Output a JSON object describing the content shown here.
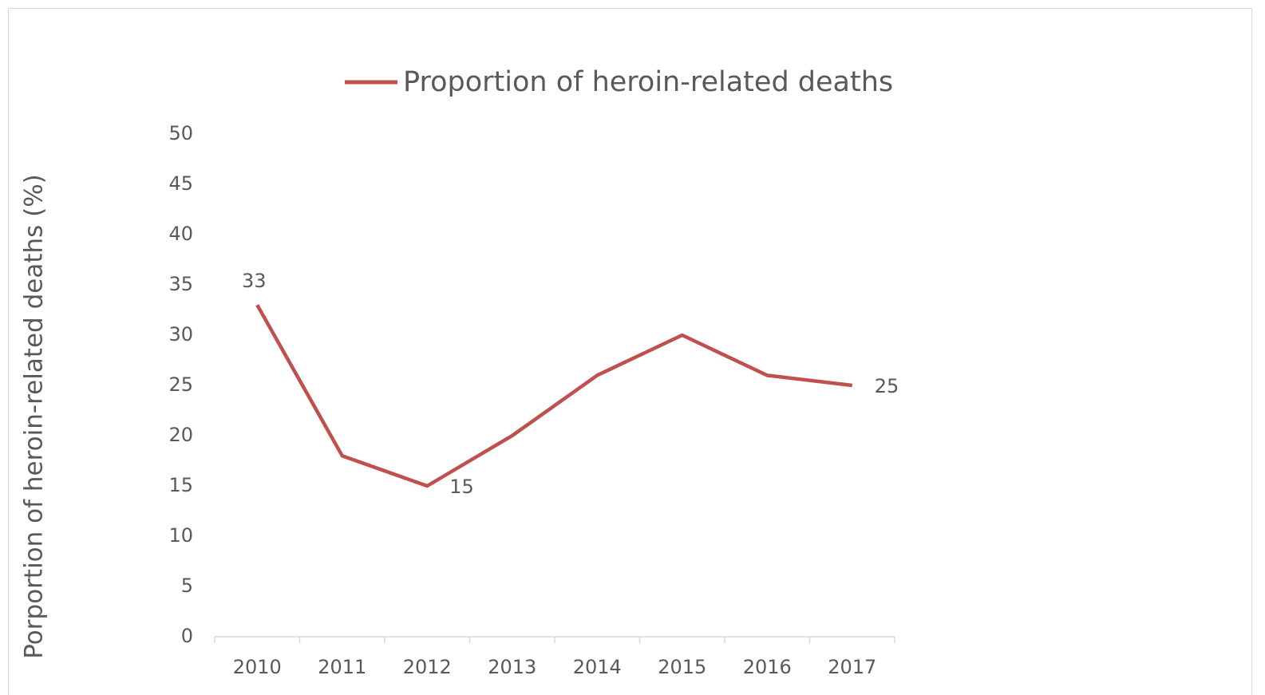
{
  "chart_data": {
    "type": "line",
    "y_label": "Porportion of heroin-related deaths (%)",
    "categories": [
      "2010",
      "2011",
      "2012",
      "2013",
      "2014",
      "2015",
      "2016",
      "2017"
    ],
    "series": [
      {
        "name": "Proportion of heroin-related deaths",
        "color": "#c0504d",
        "values": [
          33,
          18,
          15,
          20,
          26,
          30,
          26,
          25
        ]
      }
    ],
    "data_labels": [
      0,
      2,
      7
    ],
    "ylim": [
      0,
      50
    ],
    "yticks": [
      0,
      5,
      10,
      15,
      20,
      25,
      30,
      35,
      40,
      45,
      50
    ],
    "legend": "top",
    "grid": false
  }
}
